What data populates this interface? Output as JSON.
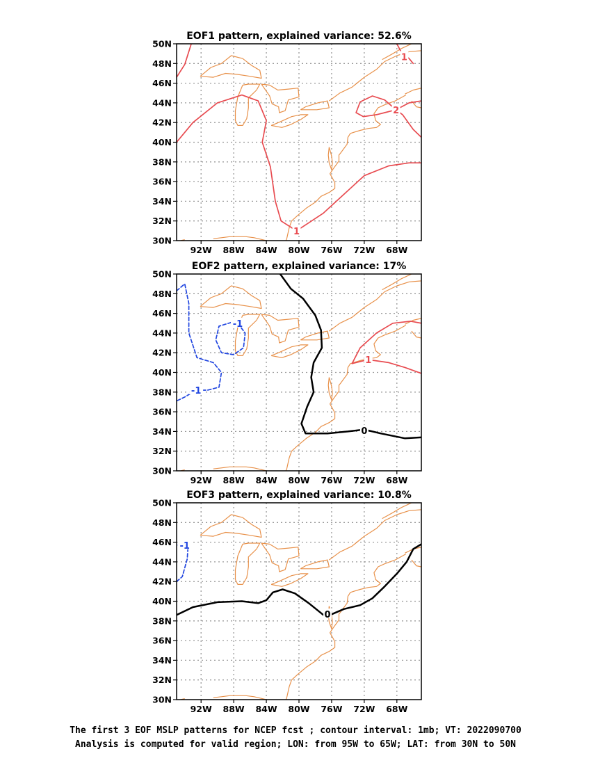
{
  "colors": {
    "positive_contour": "#e84b50",
    "negative_contour": "#2146e0",
    "zero_contour": "#000000",
    "coastline": "#e8914a",
    "grid": "#999999"
  },
  "chart_data": [
    {
      "type": "contour-map",
      "title": "EOF1 pattern, explained variance: 52.6%",
      "lon_ticks": [
        "92W",
        "88W",
        "84W",
        "80W",
        "76W",
        "72W",
        "68W"
      ],
      "lat_ticks": [
        "30N",
        "32N",
        "34N",
        "36N",
        "38N",
        "40N",
        "42N",
        "44N",
        "46N",
        "48N",
        "50N"
      ],
      "xlim": [
        -95,
        -65
      ],
      "ylim": [
        30,
        50
      ],
      "grid": true,
      "contours": [
        {
          "level": 1,
          "style": "solid",
          "color": "positive_contour",
          "points": [
            [
              -95,
              46.6
            ],
            [
              -94,
              47.9
            ],
            [
              -93.2,
              50
            ]
          ]
        },
        {
          "level": 1,
          "style": "solid",
          "color": "positive_contour",
          "points": [
            [
              -95,
              40
            ],
            [
              -93,
              42
            ],
            [
              -90,
              44
            ],
            [
              -87,
              44.8
            ],
            [
              -85,
              44.2
            ],
            [
              -84,
              42.2
            ],
            [
              -84.5,
              40
            ],
            [
              -83.5,
              37.5
            ],
            [
              -82.9,
              34
            ],
            [
              -82.2,
              32
            ],
            [
              -80.3,
              31
            ],
            [
              -77,
              32.8
            ],
            [
              -74.5,
              34.7
            ],
            [
              -72,
              36.6
            ],
            [
              -69,
              37.6
            ],
            [
              -66.5,
              37.9
            ],
            [
              -65,
              37.9
            ]
          ],
          "label": "1",
          "label_at": [
            -80.3,
            31
          ]
        },
        {
          "level": 1,
          "style": "solid",
          "color": "positive_contour",
          "points": [
            [
              -68,
              50
            ],
            [
              -67.5,
              49.2
            ],
            [
              -66.5,
              48.5
            ],
            [
              -66,
              48
            ]
          ],
          "label": "1",
          "label_at": [
            -67.1,
            48.7
          ]
        },
        {
          "level": 2,
          "style": "solid",
          "color": "positive_contour",
          "points": [
            [
              -65,
              40.5
            ],
            [
              -66,
              41.3
            ],
            [
              -67.3,
              42.8
            ],
            [
              -68.1,
              43.3
            ],
            [
              -69.5,
              44.3
            ],
            [
              -71,
              44.7
            ],
            [
              -72.5,
              44.1
            ],
            [
              -73,
              43
            ],
            [
              -72.1,
              42.6
            ],
            [
              -70.5,
              42.8
            ],
            [
              -69.5,
              43
            ],
            [
              -68.1,
              43.3
            ],
            [
              -66.5,
              44
            ],
            [
              -65,
              44.2
            ]
          ],
          "label": "2",
          "label_at": [
            -68.1,
            43.3
          ]
        }
      ]
    },
    {
      "type": "contour-map",
      "title": "EOF2 pattern, explained variance: 17%",
      "lon_ticks": [
        "92W",
        "88W",
        "84W",
        "80W",
        "76W",
        "72W",
        "68W"
      ],
      "lat_ticks": [
        "30N",
        "32N",
        "34N",
        "36N",
        "38N",
        "40N",
        "42N",
        "44N",
        "46N",
        "48N",
        "50N"
      ],
      "xlim": [
        -95,
        -65
      ],
      "ylim": [
        30,
        50
      ],
      "grid": true,
      "contours": [
        {
          "level": -1,
          "style": "dashed",
          "color": "negative_contour",
          "points": [
            [
              -95,
              48.3
            ],
            [
              -94,
              49
            ],
            [
              -93.5,
              47
            ],
            [
              -93.5,
              44
            ],
            [
              -92.5,
              41.5
            ],
            [
              -90.5,
              41
            ],
            [
              -89.5,
              40
            ],
            [
              -89.8,
              38.5
            ],
            [
              -91.2,
              38.2
            ],
            [
              -92.6,
              38.2
            ],
            [
              -94,
              37.5
            ],
            [
              -95,
              37.1
            ]
          ],
          "label": "-1",
          "label_at": [
            -92.6,
            38.2
          ]
        },
        {
          "level": -1,
          "style": "dashed",
          "color": "negative_contour",
          "points": [
            [
              -87.5,
              45
            ],
            [
              -86.6,
              44
            ],
            [
              -86.8,
              42.5
            ],
            [
              -88,
              41.8
            ],
            [
              -89.5,
              42
            ],
            [
              -90.2,
              43.3
            ],
            [
              -89.8,
              44.7
            ],
            [
              -88.2,
              45.1
            ],
            [
              -87.5,
              45
            ]
          ],
          "label": "-1",
          "label_at": [
            -87.5,
            45
          ]
        },
        {
          "level": 0,
          "style": "solid",
          "color": "zero_contour",
          "width": 2.5,
          "points": [
            [
              -82.3,
              50
            ],
            [
              -81,
              48.5
            ],
            [
              -79.5,
              47.5
            ],
            [
              -78,
              45.8
            ],
            [
              -77.3,
              44.3
            ],
            [
              -77.2,
              42.5
            ],
            [
              -78.2,
              41
            ],
            [
              -78.5,
              39.5
            ],
            [
              -78.2,
              38
            ],
            [
              -79,
              36.5
            ],
            [
              -79.7,
              34.8
            ],
            [
              -79.2,
              33.8
            ],
            [
              -76.5,
              33.8
            ],
            [
              -74,
              34
            ],
            [
              -72,
              34.2
            ],
            [
              -70,
              33.8
            ],
            [
              -67,
              33.3
            ],
            [
              -65,
              33.4
            ]
          ],
          "label": "0",
          "label_at": [
            -72,
            34.1
          ]
        },
        {
          "level": 1,
          "style": "solid",
          "color": "positive_contour",
          "points": [
            [
              -65,
              39.9
            ],
            [
              -67,
              40.5
            ],
            [
              -69,
              41
            ],
            [
              -71.5,
              41.3
            ],
            [
              -73.5,
              40.9
            ],
            [
              -72.5,
              42.5
            ],
            [
              -70.5,
              44
            ],
            [
              -68.5,
              45
            ],
            [
              -66.3,
              45.2
            ],
            [
              -65,
              45
            ]
          ],
          "label": "1",
          "label_at": [
            -71.5,
            41.3
          ]
        }
      ]
    },
    {
      "type": "contour-map",
      "title": "EOF3 pattern, explained variance: 10.8%",
      "lon_ticks": [
        "92W",
        "88W",
        "84W",
        "80W",
        "76W",
        "72W",
        "68W"
      ],
      "lat_ticks": [
        "30N",
        "32N",
        "34N",
        "36N",
        "38N",
        "40N",
        "42N",
        "44N",
        "46N",
        "48N",
        "50N"
      ],
      "xlim": [
        -95,
        -65
      ],
      "ylim": [
        30,
        50
      ],
      "grid": true,
      "contours": [
        {
          "level": -1,
          "style": "dashed",
          "color": "negative_contour",
          "points": [
            [
              -95,
              42
            ],
            [
              -94.3,
              42.5
            ],
            [
              -93.7,
              44.3
            ],
            [
              -93.6,
              45.5
            ],
            [
              -94.4,
              45.7
            ],
            [
              -95,
              45.7
            ]
          ],
          "label": "-1",
          "label_at": [
            -94,
            45.7
          ]
        },
        {
          "level": 0,
          "style": "solid",
          "color": "zero_contour",
          "width": 2.5,
          "points": [
            [
              -95,
              38.6
            ],
            [
              -93,
              39.4
            ],
            [
              -90,
              39.9
            ],
            [
              -87,
              40
            ],
            [
              -85,
              39.8
            ],
            [
              -84,
              40.1
            ],
            [
              -83.2,
              40.9
            ],
            [
              -82,
              41.2
            ],
            [
              -80.5,
              40.8
            ],
            [
              -78.8,
              39.8
            ],
            [
              -77,
              38.6
            ],
            [
              -76.2,
              38.6
            ],
            [
              -74.5,
              39.2
            ],
            [
              -72.5,
              39.6
            ],
            [
              -71,
              40.3
            ],
            [
              -69.5,
              41.5
            ],
            [
              -68,
              42.8
            ],
            [
              -66.8,
              44
            ],
            [
              -66,
              45.3
            ],
            [
              -65,
              45.8
            ]
          ],
          "label": "0",
          "label_at": [
            -76.5,
            38.7
          ]
        }
      ]
    }
  ],
  "caption": {
    "line1": "The first 3 EOF MSLP patterns for NCEP fcst ; contour interval: 1mb; VT: 2022090700",
    "line2": "Analysis is computed for valid region; LON: from 95W to 65W; LAT: from 30N to 50N"
  }
}
